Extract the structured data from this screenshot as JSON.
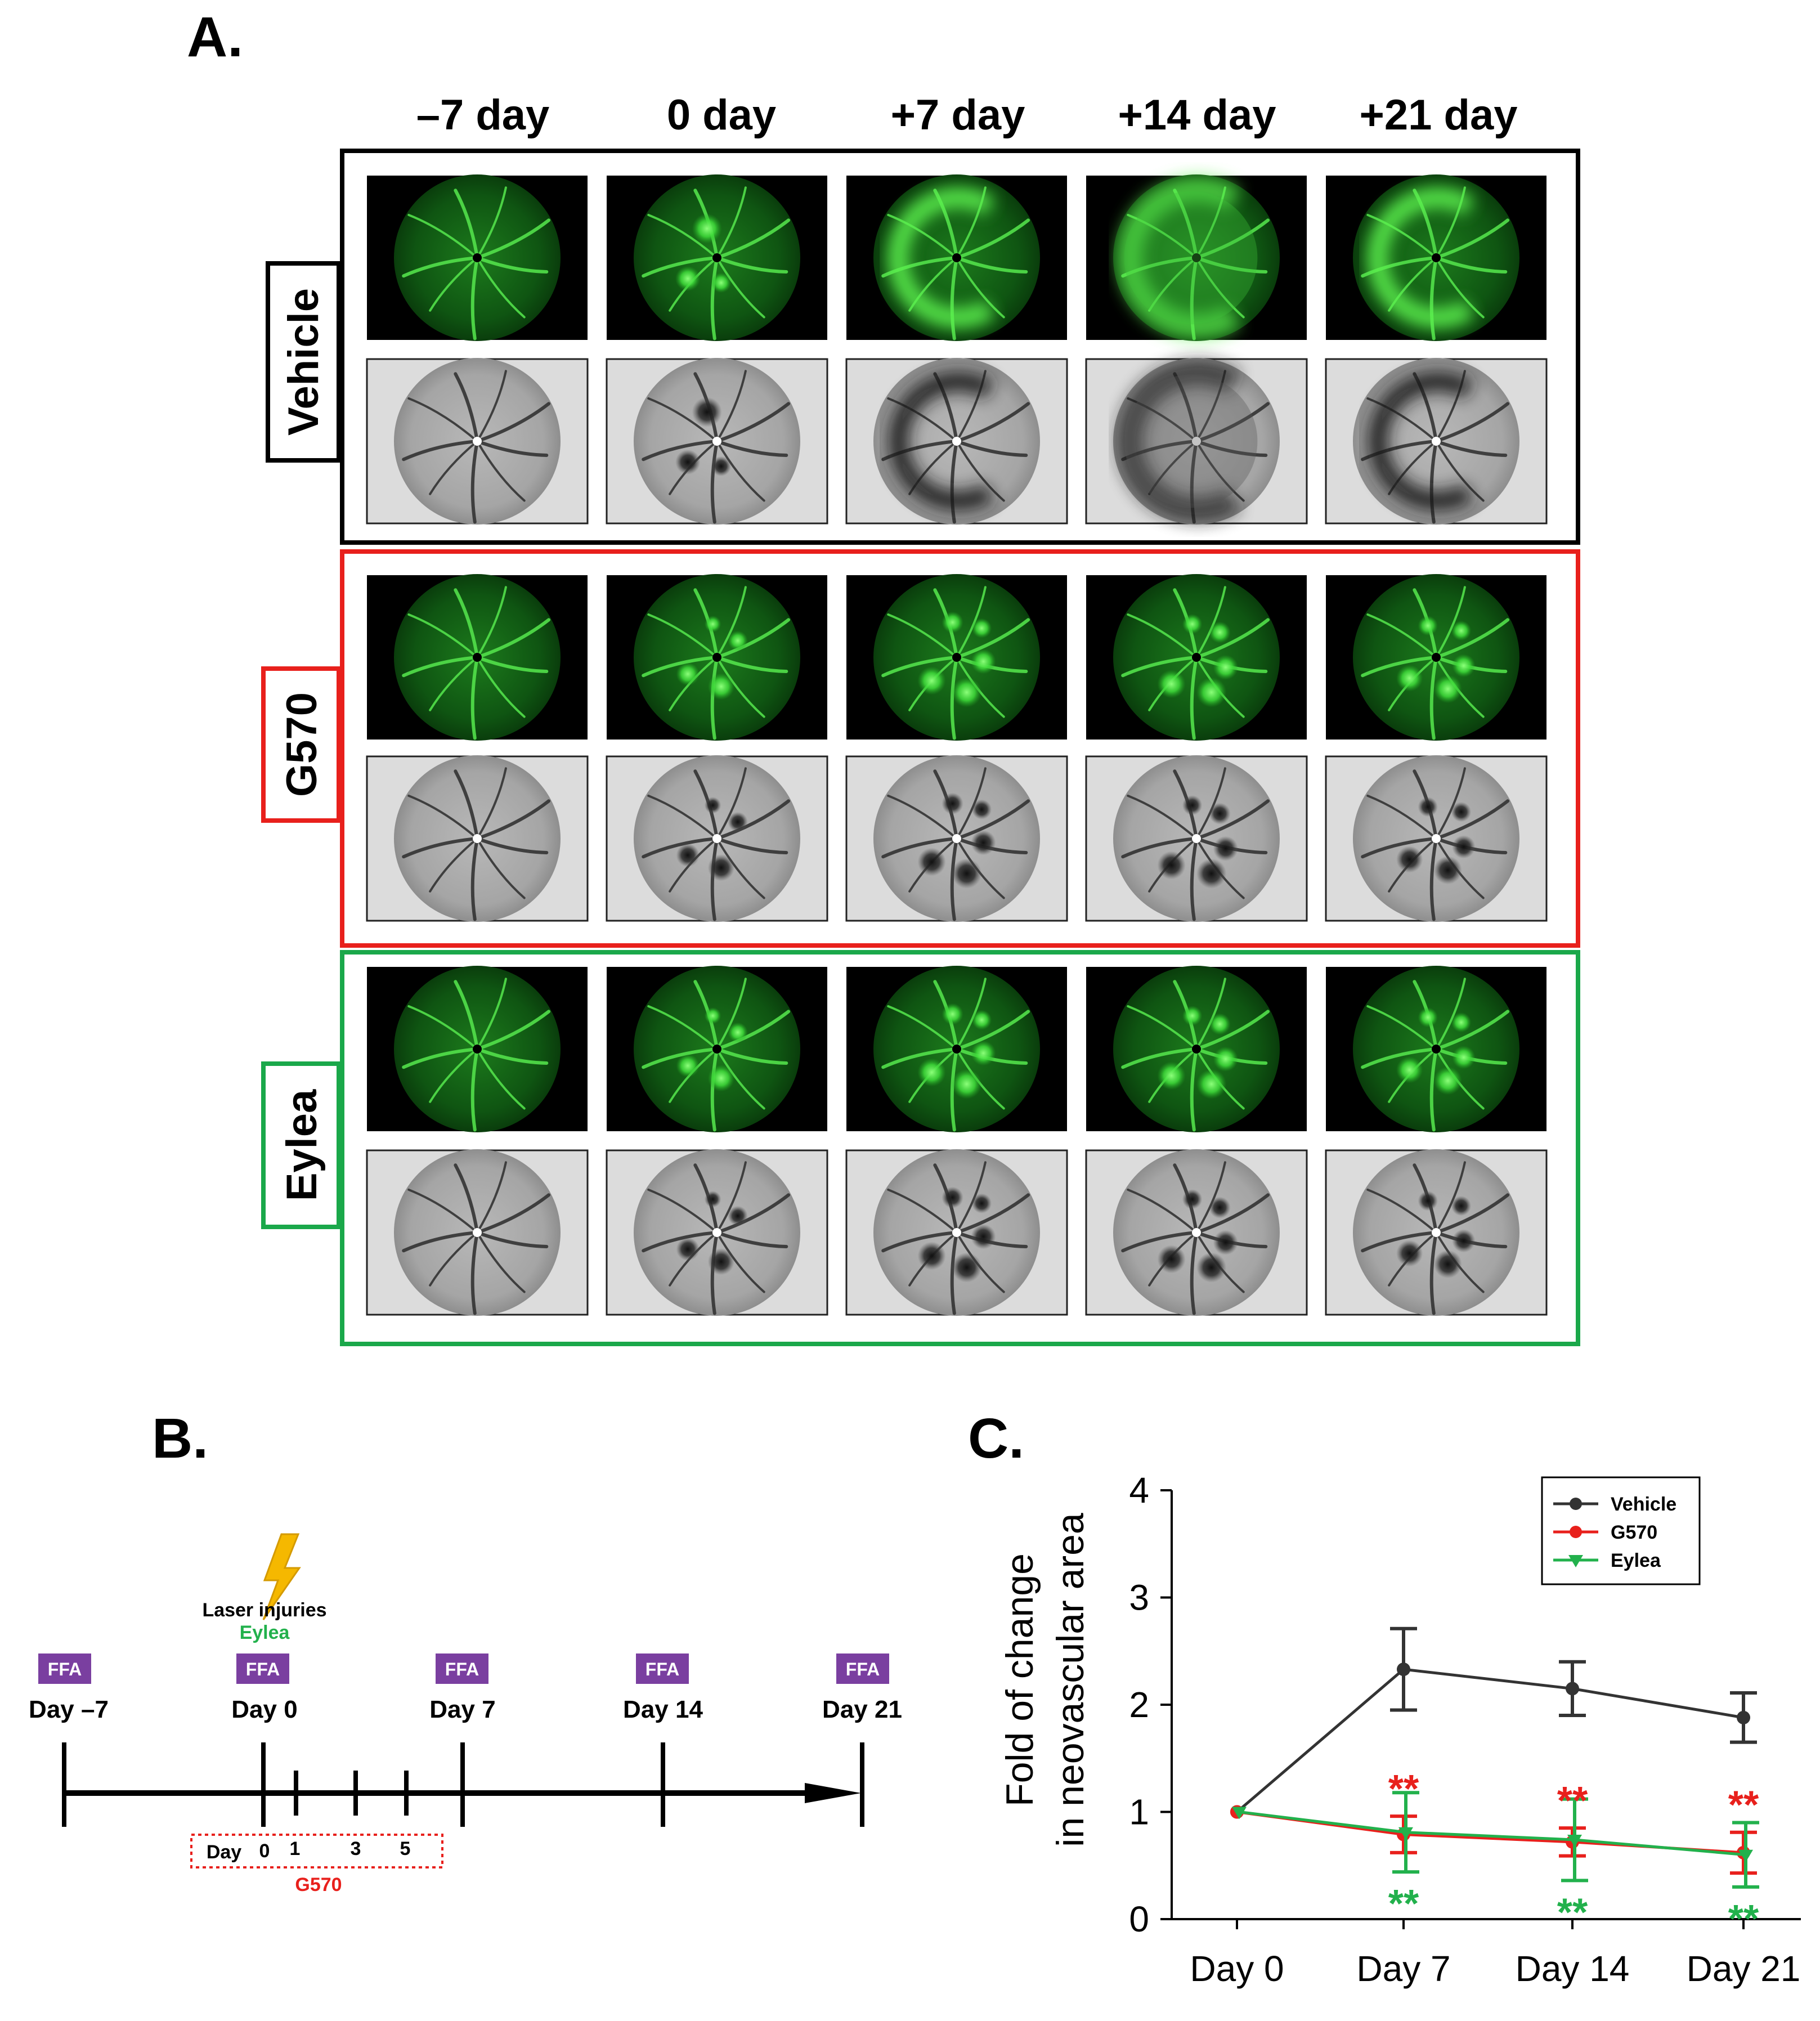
{
  "panel_a": {
    "label": "A.",
    "columns": [
      "–7 day",
      "0 day",
      "+7 day",
      "+14 day",
      "+21 day"
    ],
    "groups": [
      {
        "name": "Vehicle",
        "color": "#000000",
        "lesion_pattern": [
          "normal",
          "early-lesions",
          "large-ring",
          "diffuse-ring",
          "large-ring"
        ]
      },
      {
        "name": "G570",
        "color": "#e8201c",
        "lesion_pattern": [
          "normal",
          "spots",
          "spots",
          "spots",
          "spots"
        ]
      },
      {
        "name": "Eylea",
        "color": "#1aa84a",
        "lesion_pattern": [
          "normal",
          "spots",
          "spots",
          "spots",
          "spots"
        ]
      }
    ],
    "image_types": [
      "fluorescein-green",
      "inverted-grayscale"
    ]
  },
  "panel_b": {
    "label": "B.",
    "ffa_label": "FFA",
    "ffa_color": "#7a3fa0",
    "timepoints": [
      "Day –7",
      "Day 0",
      "Day 7",
      "Day 14",
      "Day 21"
    ],
    "laser_label": "Laser injuries",
    "eylea_label": "Eylea",
    "eylea_color": "#22b14c",
    "g570_box": {
      "prefix": "Day",
      "days": [
        "0",
        "1",
        "3",
        "5"
      ]
    },
    "g570_label": "G570",
    "g570_color": "#e8201c",
    "bolt_color": "#f5b800"
  },
  "chart_data": {
    "type": "line",
    "label": "C.",
    "categories": [
      "Day 0",
      "Day 7",
      "Day 14",
      "Day 21"
    ],
    "ylabel_line1": "Fold of change",
    "ylabel_line2": "in neovascular area",
    "ylim": [
      0,
      4
    ],
    "yticks": [
      "0",
      "1",
      "2",
      "3",
      "4"
    ],
    "legend_position": "top-right",
    "significance": "**",
    "series": [
      {
        "name": "Vehicle",
        "color": "#333333",
        "marker": "circle",
        "values": [
          1.0,
          2.33,
          2.15,
          1.88
        ],
        "errors": [
          0,
          0.38,
          0.25,
          0.23
        ]
      },
      {
        "name": "G570",
        "color": "#e8201c",
        "marker": "circle",
        "values": [
          1.0,
          0.79,
          0.72,
          0.62
        ],
        "errors": [
          0,
          0.17,
          0.13,
          0.19
        ]
      },
      {
        "name": "Eylea",
        "color": "#22b14c",
        "marker": "triangle-down",
        "values": [
          1.0,
          0.81,
          0.74,
          0.6
        ],
        "errors": [
          0,
          0.37,
          0.38,
          0.3
        ]
      }
    ]
  }
}
